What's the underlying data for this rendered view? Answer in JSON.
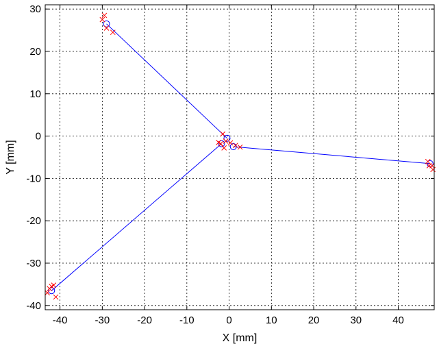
{
  "chart_data": {
    "type": "line",
    "xlabel": "X  [mm]",
    "ylabel": "Y [mm]",
    "xlim": [
      -43.5,
      48.5
    ],
    "ylim": [
      -41,
      31
    ],
    "xticks": [
      -40,
      -30,
      -20,
      -10,
      0,
      10,
      20,
      30,
      40
    ],
    "yticks": [
      -40,
      -30,
      -20,
      -10,
      0,
      10,
      20,
      30
    ],
    "grid": true,
    "colors": {
      "line": "#0000ff",
      "circle": "#0000ff",
      "cross": "#ff0000"
    },
    "series": [
      {
        "kind": "line",
        "segments": [
          [
            [
              -29,
              26.5
            ],
            [
              -0.5,
              -0.5
            ]
          ],
          [
            [
              47.5,
              -6.5
            ],
            [
              1,
              -2.5
            ]
          ],
          [
            [
              -42,
              -36.5
            ],
            [
              -1.8,
              -1.8
            ]
          ]
        ]
      },
      {
        "kind": "circle-marker",
        "points": [
          [
            -29,
            26.5
          ],
          [
            -0.5,
            -0.5
          ],
          [
            47.5,
            -6.5
          ],
          [
            1,
            -2.5
          ],
          [
            -42,
            -36.5
          ],
          [
            -1.8,
            -1.8
          ]
        ]
      },
      {
        "kind": "cross-marker",
        "points": [
          [
            -30,
            27.5
          ],
          [
            -29.5,
            28.5
          ],
          [
            -29,
            25.5
          ],
          [
            -27.5,
            24.5
          ],
          [
            -1.5,
            0.5
          ],
          [
            -2.5,
            -1.5
          ],
          [
            -0.8,
            -1.2
          ],
          [
            0.3,
            -1.6
          ],
          [
            1.5,
            -2.2
          ],
          [
            2.6,
            -2.6
          ],
          [
            -2,
            -1.8
          ],
          [
            -1.2,
            -2.8
          ],
          [
            47,
            -6
          ],
          [
            48,
            -7
          ],
          [
            47.3,
            -7
          ],
          [
            48.2,
            -7.9
          ],
          [
            -42.5,
            -36
          ],
          [
            -42,
            -35.5
          ],
          [
            -41.5,
            -35.2
          ],
          [
            -41,
            -38
          ],
          [
            -43,
            -37
          ]
        ]
      }
    ]
  }
}
